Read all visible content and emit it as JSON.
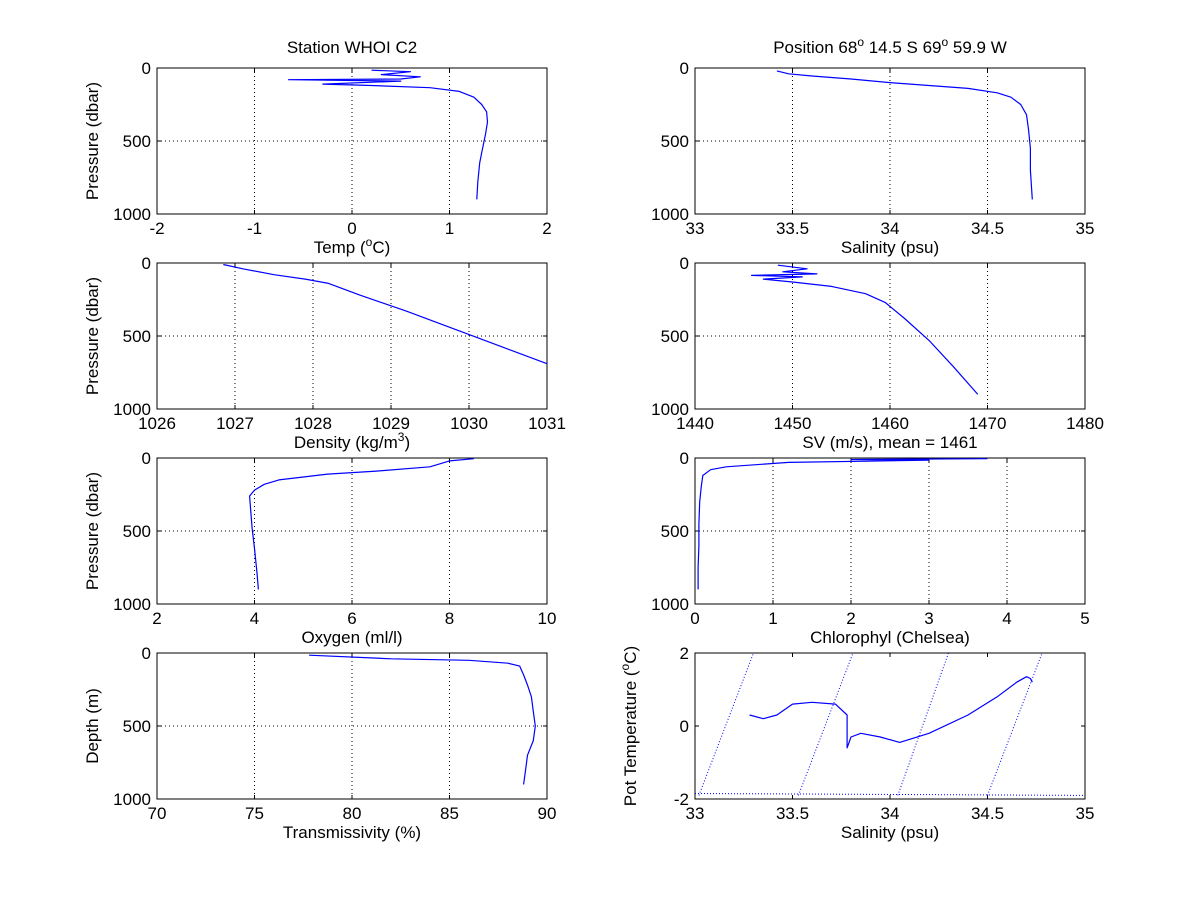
{
  "colors": {
    "series": "#0000ff",
    "axes": "#000000",
    "background": "#ffffff"
  },
  "chart_data": [
    {
      "type": "line",
      "title": "Station  WHOI C2",
      "xlabel": "Temp (ºC)",
      "ylabel": "Pressure (dbar)",
      "xlim": [
        -2,
        2
      ],
      "ylim": [
        0,
        1000
      ],
      "y_reversed": true,
      "grid": true,
      "xticks": [
        -2,
        -1,
        0,
        1,
        2
      ],
      "yticks": [
        0,
        500,
        1000
      ],
      "series": [
        {
          "x": [
            0.2,
            0.6,
            0.3,
            0.7,
            0.5,
            -0.65,
            0.5,
            -0.3,
            0.2,
            0.8,
            1.1,
            1.25,
            1.33,
            1.38,
            1.39,
            1.37,
            1.34,
            1.31,
            1.29,
            1.28
          ],
          "y": [
            15,
            25,
            45,
            60,
            75,
            80,
            90,
            110,
            120,
            135,
            160,
            200,
            250,
            300,
            370,
            450,
            550,
            650,
            780,
            900
          ]
        }
      ]
    },
    {
      "type": "line",
      "title": "Position 68º 14.5 S 69º 59.9 W",
      "xlabel": "Salinity (psu)",
      "ylabel": "",
      "xlim": [
        33,
        35
      ],
      "ylim": [
        0,
        1000
      ],
      "y_reversed": true,
      "grid": true,
      "xticks": [
        33,
        33.5,
        34,
        34.5,
        35
      ],
      "yticks": [
        0,
        500,
        1000
      ],
      "series": [
        {
          "x": [
            33.42,
            33.48,
            33.6,
            33.8,
            34.0,
            34.2,
            34.4,
            34.55,
            34.62,
            34.67,
            34.7,
            34.71,
            34.72,
            34.72,
            34.73
          ],
          "y": [
            20,
            40,
            55,
            75,
            100,
            120,
            140,
            170,
            200,
            250,
            320,
            420,
            550,
            700,
            900
          ]
        }
      ]
    },
    {
      "type": "line",
      "title": "",
      "xlabel": "Density (kg/m3)",
      "ylabel": "Pressure (dbar)",
      "xlim": [
        1026,
        1031
      ],
      "ylim": [
        0,
        1000
      ],
      "y_reversed": true,
      "grid": true,
      "xticks": [
        1026,
        1027,
        1028,
        1029,
        1030,
        1031
      ],
      "yticks": [
        0,
        500,
        1000
      ],
      "series": [
        {
          "x": [
            1026.85,
            1027.1,
            1027.5,
            1027.9,
            1028.2,
            1028.6,
            1029.2,
            1029.8,
            1030.4,
            1031.0
          ],
          "y": [
            10,
            40,
            80,
            110,
            140,
            220,
            330,
            450,
            570,
            690
          ]
        }
      ]
    },
    {
      "type": "line",
      "title": "",
      "xlabel": "SV (m/s), mean = 1461",
      "ylabel": "",
      "xlim": [
        1440,
        1480
      ],
      "ylim": [
        0,
        1000
      ],
      "y_reversed": true,
      "grid": true,
      "xticks": [
        1440,
        1450,
        1460,
        1470,
        1480
      ],
      "yticks": [
        0,
        500,
        1000
      ],
      "series": [
        {
          "x": [
            1448.5,
            1451.5,
            1449.0,
            1452.5,
            1445.8,
            1451.0,
            1447.0,
            1450.0,
            1454.0,
            1457.5,
            1459.5,
            1461.5,
            1464.0,
            1466.5,
            1469.0
          ],
          "y": [
            15,
            40,
            60,
            75,
            85,
            95,
            110,
            130,
            160,
            210,
            270,
            380,
            530,
            710,
            900
          ]
        }
      ]
    },
    {
      "type": "line",
      "title": "",
      "xlabel": "Oxygen (ml/l)",
      "ylabel": "Pressure (dbar)",
      "xlim": [
        2,
        10
      ],
      "ylim": [
        0,
        1000
      ],
      "y_reversed": true,
      "grid": true,
      "xticks": [
        2,
        4,
        6,
        8,
        10
      ],
      "yticks": [
        0,
        500,
        1000
      ],
      "series": [
        {
          "x": [
            8.5,
            8.0,
            7.6,
            6.5,
            5.5,
            5.0,
            4.5,
            4.2,
            4.0,
            3.9,
            3.92,
            3.95,
            4.0,
            4.05,
            4.08
          ],
          "y": [
            5,
            20,
            60,
            90,
            110,
            130,
            150,
            180,
            220,
            260,
            350,
            480,
            620,
            780,
            900
          ]
        }
      ]
    },
    {
      "type": "line",
      "title": "",
      "xlabel": "Chlorophyl (Chelsea)",
      "ylabel": "",
      "xlim": [
        0,
        5
      ],
      "ylim": [
        0,
        1000
      ],
      "y_reversed": true,
      "grid": true,
      "xticks": [
        0,
        1,
        2,
        3,
        4,
        5
      ],
      "yticks": [
        0,
        500,
        1000
      ],
      "series": [
        {
          "x": [
            3.75,
            2.0,
            3.0,
            1.2,
            0.4,
            0.2,
            0.1,
            0.08,
            0.06,
            0.05,
            0.05,
            0.04,
            0.04
          ],
          "y": [
            5,
            10,
            15,
            30,
            60,
            80,
            120,
            200,
            300,
            450,
            600,
            750,
            900
          ]
        }
      ]
    },
    {
      "type": "line",
      "title": "",
      "xlabel": "Transmissivity (%)",
      "ylabel": "Depth (m)",
      "xlim": [
        70,
        90
      ],
      "ylim": [
        0,
        1000
      ],
      "y_reversed": true,
      "grid": true,
      "xticks": [
        70,
        75,
        80,
        85,
        90
      ],
      "yticks": [
        0,
        500,
        1000
      ],
      "series": [
        {
          "x": [
            77.8,
            82.0,
            86.0,
            88.0,
            88.6,
            88.8,
            89.0,
            89.2,
            89.3,
            89.4,
            89.3,
            89.0,
            88.9,
            88.8
          ],
          "y": [
            15,
            40,
            50,
            70,
            90,
            150,
            220,
            300,
            400,
            500,
            600,
            700,
            800,
            900
          ]
        }
      ]
    },
    {
      "type": "line",
      "title": "",
      "xlabel": "Salinity (psu)",
      "ylabel": "Pot Temperature (ºC)",
      "xlim": [
        33,
        35
      ],
      "ylim": [
        -2,
        2
      ],
      "y_reversed": false,
      "grid": false,
      "xticks": [
        33,
        33.5,
        34,
        34.5,
        35
      ],
      "yticks": [
        -2,
        0,
        2
      ],
      "series": [
        {
          "style": "solid",
          "x": [
            33.28,
            33.35,
            33.42,
            33.5,
            33.6,
            33.72,
            33.78,
            33.78,
            33.8,
            33.85,
            33.95,
            34.05,
            34.2,
            34.4,
            34.55,
            34.65,
            34.7,
            34.72,
            34.73
          ],
          "y": [
            0.3,
            0.2,
            0.3,
            0.6,
            0.65,
            0.6,
            0.3,
            -0.6,
            -0.3,
            -0.2,
            -0.3,
            -0.45,
            -0.2,
            0.3,
            0.8,
            1.2,
            1.35,
            1.3,
            1.2
          ]
        },
        {
          "style": "dotted",
          "x": [
            33.02,
            33.3
          ],
          "y": [
            -1.9,
            2
          ]
        },
        {
          "style": "dotted",
          "x": [
            33.53,
            33.81
          ],
          "y": [
            -1.9,
            2
          ]
        },
        {
          "style": "dotted",
          "x": [
            34.04,
            34.3
          ],
          "y": [
            -1.9,
            2
          ]
        },
        {
          "style": "dotted",
          "x": [
            34.5,
            34.78
          ],
          "y": [
            -1.9,
            2
          ]
        },
        {
          "style": "dotted",
          "x": [
            33.0,
            35.0
          ],
          "y": [
            -1.85,
            -1.9
          ]
        }
      ]
    }
  ]
}
